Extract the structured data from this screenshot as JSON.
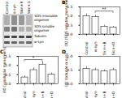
{
  "chart_data": [
    {
      "type": "bar",
      "title": "B",
      "categories": [
        "Control",
        "α-syn",
        "Skin+B",
        "Skin+D"
      ],
      "values": [
        1.0,
        0.95,
        0.42,
        0.38
      ],
      "errors": [
        0.12,
        0.1,
        0.08,
        0.06
      ],
      "y_label": "OD (SDS soluble monomers)",
      "color": "#ffffff",
      "ylim": [
        0,
        1.5
      ],
      "yticks": [
        {
          "value": 0,
          "label": "0.0"
        },
        {
          "value": 0.5,
          "label": "0.5"
        },
        {
          "value": 1,
          "label": "1.0"
        },
        {
          "value": 1.5,
          "label": "1.5"
        }
      ],
      "grid": false,
      "significance": {
        "text": "**",
        "between": [
          "α-syn",
          "Skin+D"
        ],
        "y": 1.25
      }
    },
    {
      "type": "bar",
      "title": "C",
      "categories": [
        "Control",
        "α-syn",
        "Skin+B",
        "Skin+D"
      ],
      "values": [
        0.35,
        0.75,
        1.05,
        0.5
      ],
      "errors": [
        0.08,
        0.12,
        0.15,
        0.1
      ],
      "y_label": "OD (insoluble monomers)",
      "color": "#ffffff",
      "ylim": [
        0,
        1.5
      ],
      "yticks": [
        {
          "value": 0,
          "label": "0.0"
        },
        {
          "value": 0.5,
          "label": "0.5"
        },
        {
          "value": 1,
          "label": "1.0"
        },
        {
          "value": 1.5,
          "label": "1.5"
        }
      ],
      "grid": false,
      "significance": {
        "text": "*",
        "between": [
          "Control",
          "Skin+B"
        ],
        "y": 1.3
      }
    },
    {
      "type": "bar",
      "title": "D",
      "categories": [
        "Control",
        "α-syn",
        "Skin+B",
        "Skin+D"
      ],
      "values": [
        0.55,
        0.5,
        0.45,
        0.5
      ],
      "errors": [
        0.08,
        0.07,
        0.06,
        0.07
      ],
      "y_label": "OD (soluble α-syn)",
      "color": "#ffffff",
      "ylim": [
        0,
        1
      ],
      "yticks": [
        {
          "value": 0,
          "label": "0.0"
        },
        {
          "value": 0.5,
          "label": "0.5"
        },
        {
          "value": 1,
          "label": "1.0"
        }
      ],
      "grid": false
    }
  ],
  "blot": {
    "lanes": [
      "Control",
      "α-syn",
      "Skin+B",
      "Skin+D"
    ],
    "rows": [
      "SDS insoluble oligomer",
      "SDS soluble oligomer",
      "Tubulin",
      "α-syn"
    ]
  }
}
